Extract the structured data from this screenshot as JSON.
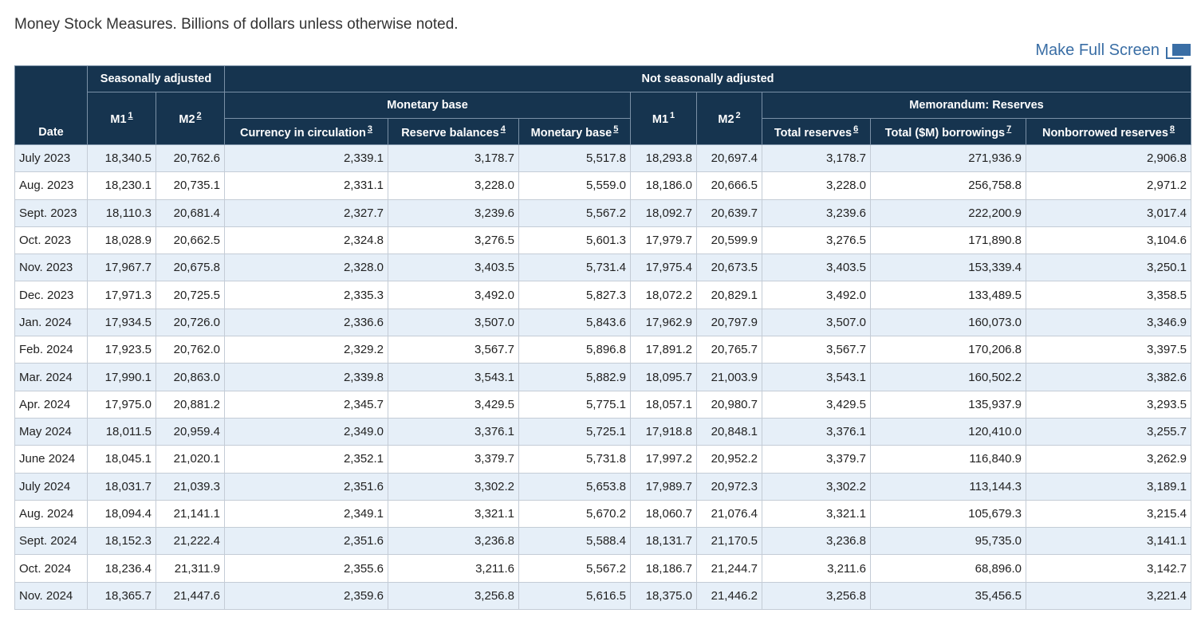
{
  "caption": "Money Stock Measures. Billions of dollars unless otherwise noted.",
  "fullscreen_label": "Make Full Screen",
  "fullscreen_icon": "fullscreen-icon",
  "header": {
    "date": "Date",
    "seasonally_adjusted": "Seasonally adjusted",
    "not_seasonally_adjusted": "Not seasonally adjusted",
    "monetary_base_group": "Monetary base",
    "memorandum_reserves": "Memorandum: Reserves",
    "columns": [
      {
        "label": "M1",
        "fn": "1"
      },
      {
        "label": "M2",
        "fn": "2"
      },
      {
        "label": "Currency in circulation",
        "fn": "3"
      },
      {
        "label": "Reserve balances",
        "fn": "4"
      },
      {
        "label": "Monetary base",
        "fn": "5"
      },
      {
        "label": "M1",
        "fn": "1"
      },
      {
        "label": "M2",
        "fn": "2"
      },
      {
        "label": "Total reserves",
        "fn": "6"
      },
      {
        "label": "Total ($M) borrowings",
        "fn": "7"
      },
      {
        "label": "Nonborrowed reserves",
        "fn": "8"
      }
    ]
  },
  "rows": [
    [
      "July 2023",
      "18,340.5",
      "20,762.6",
      "2,339.1",
      "3,178.7",
      "5,517.8",
      "18,293.8",
      "20,697.4",
      "3,178.7",
      "271,936.9",
      "2,906.8"
    ],
    [
      "Aug. 2023",
      "18,230.1",
      "20,735.1",
      "2,331.1",
      "3,228.0",
      "5,559.0",
      "18,186.0",
      "20,666.5",
      "3,228.0",
      "256,758.8",
      "2,971.2"
    ],
    [
      "Sept. 2023",
      "18,110.3",
      "20,681.4",
      "2,327.7",
      "3,239.6",
      "5,567.2",
      "18,092.7",
      "20,639.7",
      "3,239.6",
      "222,200.9",
      "3,017.4"
    ],
    [
      "Oct. 2023",
      "18,028.9",
      "20,662.5",
      "2,324.8",
      "3,276.5",
      "5,601.3",
      "17,979.7",
      "20,599.9",
      "3,276.5",
      "171,890.8",
      "3,104.6"
    ],
    [
      "Nov. 2023",
      "17,967.7",
      "20,675.8",
      "2,328.0",
      "3,403.5",
      "5,731.4",
      "17,975.4",
      "20,673.5",
      "3,403.5",
      "153,339.4",
      "3,250.1"
    ],
    [
      "Dec. 2023",
      "17,971.3",
      "20,725.5",
      "2,335.3",
      "3,492.0",
      "5,827.3",
      "18,072.2",
      "20,829.1",
      "3,492.0",
      "133,489.5",
      "3,358.5"
    ],
    [
      "Jan. 2024",
      "17,934.5",
      "20,726.0",
      "2,336.6",
      "3,507.0",
      "5,843.6",
      "17,962.9",
      "20,797.9",
      "3,507.0",
      "160,073.0",
      "3,346.9"
    ],
    [
      "Feb. 2024",
      "17,923.5",
      "20,762.0",
      "2,329.2",
      "3,567.7",
      "5,896.8",
      "17,891.2",
      "20,765.7",
      "3,567.7",
      "170,206.8",
      "3,397.5"
    ],
    [
      "Mar. 2024",
      "17,990.1",
      "20,863.0",
      "2,339.8",
      "3,543.1",
      "5,882.9",
      "18,095.7",
      "21,003.9",
      "3,543.1",
      "160,502.2",
      "3,382.6"
    ],
    [
      "Apr. 2024",
      "17,975.0",
      "20,881.2",
      "2,345.7",
      "3,429.5",
      "5,775.1",
      "18,057.1",
      "20,980.7",
      "3,429.5",
      "135,937.9",
      "3,293.5"
    ],
    [
      "May 2024",
      "18,011.5",
      "20,959.4",
      "2,349.0",
      "3,376.1",
      "5,725.1",
      "17,918.8",
      "20,848.1",
      "3,376.1",
      "120,410.0",
      "3,255.7"
    ],
    [
      "June 2024",
      "18,045.1",
      "21,020.1",
      "2,352.1",
      "3,379.7",
      "5,731.8",
      "17,997.2",
      "20,952.2",
      "3,379.7",
      "116,840.9",
      "3,262.9"
    ],
    [
      "July 2024",
      "18,031.7",
      "21,039.3",
      "2,351.6",
      "3,302.2",
      "5,653.8",
      "17,989.7",
      "20,972.3",
      "3,302.2",
      "113,144.3",
      "3,189.1"
    ],
    [
      "Aug. 2024",
      "18,094.4",
      "21,141.1",
      "2,349.1",
      "3,321.1",
      "5,670.2",
      "18,060.7",
      "21,076.4",
      "3,321.1",
      "105,679.3",
      "3,215.4"
    ],
    [
      "Sept. 2024",
      "18,152.3",
      "21,222.4",
      "2,351.6",
      "3,236.8",
      "5,588.4",
      "18,131.7",
      "21,170.5",
      "3,236.8",
      "95,735.0",
      "3,141.1"
    ],
    [
      "Oct. 2024",
      "18,236.4",
      "21,311.9",
      "2,355.6",
      "3,211.6",
      "5,567.2",
      "18,186.7",
      "21,244.7",
      "3,211.6",
      "68,896.0",
      "3,142.7"
    ],
    [
      "Nov. 2024",
      "18,365.7",
      "21,447.6",
      "2,359.6",
      "3,256.8",
      "5,616.5",
      "18,375.0",
      "21,446.2",
      "3,256.8",
      "35,456.5",
      "3,221.4"
    ]
  ]
}
